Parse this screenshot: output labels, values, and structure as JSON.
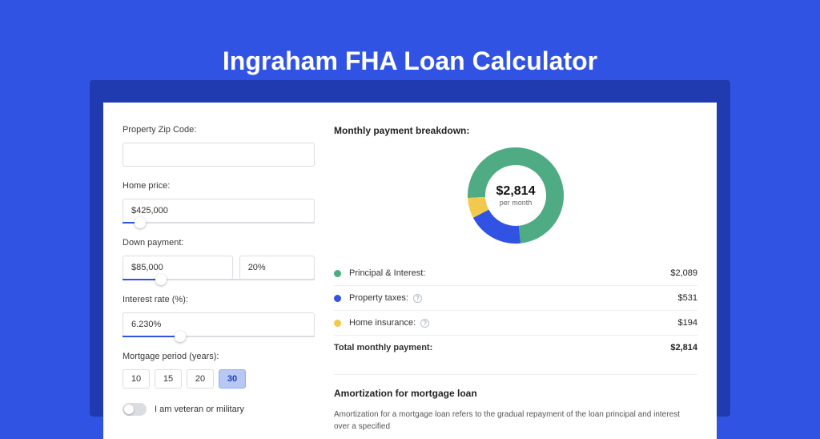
{
  "colors": {
    "page_bg": "#3053e3",
    "card_bg": "#ffffff",
    "text_primary": "#222222",
    "text_muted": "#666666",
    "border": "#dadde2",
    "accent": "#3053e3"
  },
  "header": {
    "title": "Ingraham FHA Loan Calculator",
    "title_fontsize": 32,
    "title_color": "#ffffff"
  },
  "form": {
    "zip": {
      "label": "Property Zip Code:",
      "value": ""
    },
    "home_price": {
      "label": "Home price:",
      "value": "$425,000",
      "slider_fill_pct": 9,
      "thumb_pct": 9
    },
    "down_payment": {
      "label": "Down payment:",
      "amount": "$85,000",
      "percent": "20%",
      "slider_fill_pct": 20,
      "thumb_pct": 20
    },
    "interest_rate": {
      "label": "Interest rate (%):",
      "value": "6.230%",
      "slider_fill_pct": 30,
      "thumb_pct": 30
    },
    "mortgage_period": {
      "label": "Mortgage period (years):",
      "options": [
        "10",
        "15",
        "20",
        "30"
      ],
      "selected": "30"
    },
    "veteran": {
      "label": "I am veteran or military",
      "on": false
    }
  },
  "breakdown": {
    "title": "Monthly payment breakdown:",
    "center_amount": "$2,814",
    "center_sub": "per month",
    "slices": [
      {
        "key": "pi",
        "label": "Principal & Interest:",
        "value": "$2,089",
        "color": "#4eab83",
        "pct": 74.2,
        "help": false
      },
      {
        "key": "taxes",
        "label": "Property taxes:",
        "value": "$531",
        "color": "#3053e3",
        "pct": 18.9,
        "help": true
      },
      {
        "key": "insurance",
        "label": "Home insurance:",
        "value": "$194",
        "color": "#f3c94d",
        "pct": 6.9,
        "help": true
      }
    ],
    "total": {
      "label": "Total monthly payment:",
      "value": "$2,814"
    },
    "donut": {
      "outer_radius": 60,
      "inner_radius": 38,
      "bg": "#ffffff"
    }
  },
  "amortization": {
    "title": "Amortization for mortgage loan",
    "text": "Amortization for a mortgage loan refers to the gradual repayment of the loan principal and interest over a specified"
  }
}
